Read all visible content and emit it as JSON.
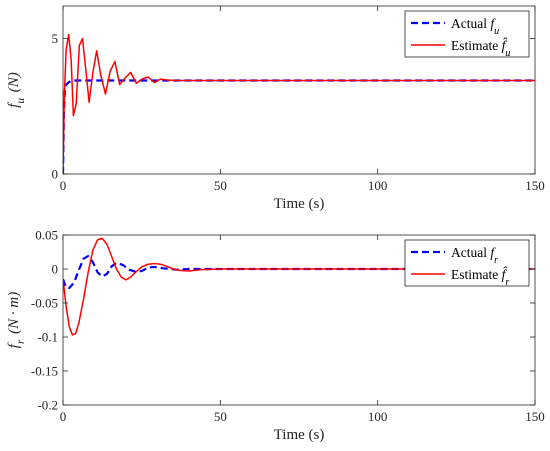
{
  "chart_data": [
    {
      "type": "line",
      "xlabel": "Time (s)",
      "ylabel": "f_u (N)",
      "xlim": [
        0,
        150
      ],
      "ylim": [
        0,
        6.2
      ],
      "xticks": [
        0,
        50,
        100,
        150
      ],
      "yticks": [
        0,
        5
      ],
      "x_tick_labels": [
        "0",
        "50",
        "100",
        "150"
      ],
      "y_tick_labels": [
        "0",
        "5"
      ],
      "grid": false,
      "legend_position": "top-right",
      "series": [
        {
          "name": "Actual f_u",
          "color": "#0000ff",
          "style": "dashed",
          "x": [
            0,
            0.3,
            0.6,
            1,
            1.5,
            2,
            3,
            5,
            10,
            20,
            30,
            40,
            60,
            100,
            150
          ],
          "y": [
            0,
            2.3,
            3.1,
            3.3,
            3.35,
            3.4,
            3.45,
            3.45,
            3.45,
            3.45,
            3.45,
            3.45,
            3.45,
            3.45,
            3.45
          ]
        },
        {
          "name": "Estimate f̂_u",
          "color": "#ff0000",
          "style": "solid",
          "x": [
            0,
            0.4,
            1.0,
            1.8,
            2.6,
            3.3,
            4.2,
            5.2,
            6.2,
            7.2,
            8.3,
            9.5,
            10.7,
            12,
            13.5,
            15,
            16.5,
            18,
            19.8,
            21.5,
            23.3,
            25,
            27,
            29,
            31,
            33,
            36,
            40,
            50,
            70,
            100,
            150
          ],
          "y": [
            0,
            2.8,
            4.6,
            5.15,
            4.2,
            2.15,
            2.6,
            4.75,
            5.0,
            3.9,
            2.65,
            3.75,
            4.55,
            3.65,
            2.95,
            3.8,
            4.15,
            3.3,
            3.55,
            3.75,
            3.35,
            3.5,
            3.58,
            3.38,
            3.5,
            3.47,
            3.45,
            3.45,
            3.45,
            3.45,
            3.45,
            3.45
          ]
        }
      ]
    },
    {
      "type": "line",
      "xlabel": "Time (s)",
      "ylabel": "f_r (N · m)",
      "xlim": [
        0,
        150
      ],
      "ylim": [
        -0.2,
        0.05
      ],
      "xticks": [
        0,
        50,
        100,
        150
      ],
      "yticks": [
        -0.2,
        -0.15,
        -0.1,
        -0.05,
        0,
        0.05
      ],
      "x_tick_labels": [
        "0",
        "50",
        "100",
        "150"
      ],
      "y_tick_labels": [
        "-0.2",
        "-0.15",
        "-0.1",
        "-0.05",
        "0",
        "0.05"
      ],
      "grid": false,
      "legend_position": "top-right",
      "series": [
        {
          "name": "Actual f_r",
          "color": "#0000ff",
          "style": "dashed",
          "x": [
            0,
            1,
            2,
            3.5,
            5,
            6.5,
            8,
            9.5,
            11,
            12.5,
            14,
            15.5,
            17,
            19,
            21,
            23,
            25,
            27,
            29,
            32,
            36,
            40,
            50,
            70,
            100,
            150
          ],
          "y": [
            -0.015,
            -0.027,
            -0.028,
            -0.02,
            -0.002,
            0.015,
            0.019,
            0.01,
            -0.005,
            -0.011,
            -0.007,
            0.004,
            0.009,
            0.006,
            -0.001,
            -0.004,
            -0.003,
            0.002,
            0.003,
            0.001,
            -0.001,
            0,
            0,
            0,
            0,
            0
          ]
        },
        {
          "name": "Estimate f̂_r",
          "color": "#ff0000",
          "style": "solid",
          "x": [
            0,
            1,
            2,
            3,
            4,
            5,
            6.5,
            8,
            9.5,
            11,
            12.5,
            14,
            15.5,
            17,
            18.5,
            20,
            21.5,
            23,
            25,
            27,
            29,
            31,
            33,
            35,
            37,
            40,
            44,
            50,
            70,
            100,
            150
          ],
          "y": [
            -0.015,
            -0.055,
            -0.085,
            -0.097,
            -0.095,
            -0.08,
            -0.045,
            -0.005,
            0.028,
            0.043,
            0.045,
            0.036,
            0.018,
            0.0,
            -0.012,
            -0.016,
            -0.012,
            -0.005,
            0.003,
            0.007,
            0.008,
            0.007,
            0.004,
            0.0,
            -0.002,
            -0.003,
            -0.001,
            0,
            0,
            0,
            0
          ]
        }
      ]
    }
  ]
}
